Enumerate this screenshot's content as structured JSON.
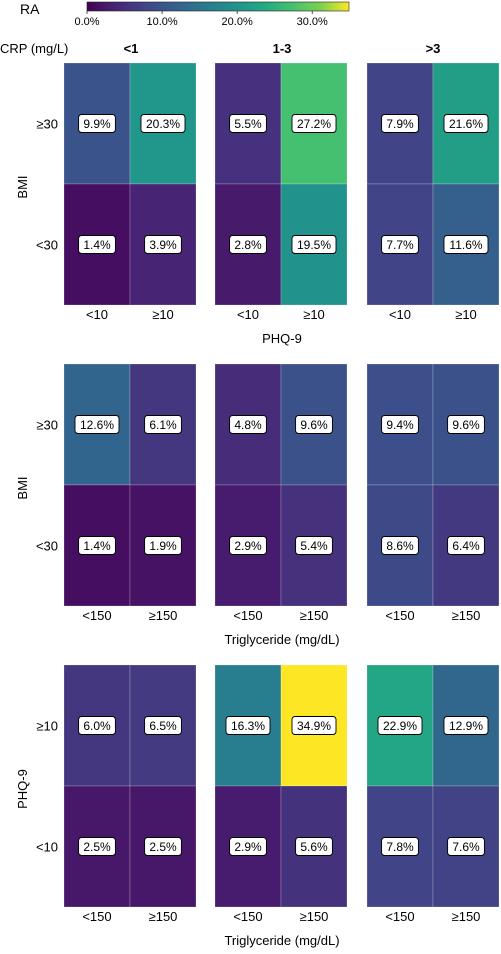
{
  "colorbar": {
    "label": "RA",
    "ticks": [
      {
        "value": 0,
        "label": "0.0%"
      },
      {
        "value": 10,
        "label": "10.0%"
      },
      {
        "value": 20,
        "label": "20.0%"
      },
      {
        "value": 30,
        "label": "30.0%"
      }
    ],
    "range": [
      0,
      34.9
    ],
    "colormap": "viridis"
  },
  "column_groups": {
    "label": "CRP (mg/L)",
    "names": [
      "<1",
      "1-3",
      ">3"
    ]
  },
  "chart_data": [
    {
      "type": "heatmap",
      "ylabel": "BMI",
      "xlabel": "PHQ-9",
      "row_labels": [
        "≥30",
        "<30"
      ],
      "col_labels": [
        "<10",
        "≥10"
      ],
      "panels": [
        {
          "group": "<1",
          "values": [
            [
              9.9,
              20.3
            ],
            [
              1.4,
              3.9
            ]
          ],
          "labels": [
            [
              "9.9%",
              "20.3%"
            ],
            [
              "1.4%",
              "3.9%"
            ]
          ]
        },
        {
          "group": "1-3",
          "values": [
            [
              5.5,
              27.2
            ],
            [
              2.8,
              19.5
            ]
          ],
          "labels": [
            [
              "5.5%",
              "27.2%"
            ],
            [
              "2.8%",
              "19.5%"
            ]
          ]
        },
        {
          "group": ">3",
          "values": [
            [
              7.9,
              21.6
            ],
            [
              7.7,
              11.6
            ]
          ],
          "labels": [
            [
              "7.9%",
              "21.6%"
            ],
            [
              "7.7%",
              "11.6%"
            ]
          ]
        }
      ]
    },
    {
      "type": "heatmap",
      "ylabel": "BMI",
      "xlabel": "Triglyceride (mg/dL)",
      "row_labels": [
        "≥30",
        "<30"
      ],
      "col_labels": [
        "<150",
        "≥150"
      ],
      "panels": [
        {
          "group": "<1",
          "values": [
            [
              12.6,
              6.1
            ],
            [
              1.4,
              1.9
            ]
          ],
          "labels": [
            [
              "12.6%",
              "6.1%"
            ],
            [
              "1.4%",
              "1.9%"
            ]
          ]
        },
        {
          "group": "1-3",
          "values": [
            [
              4.8,
              9.6
            ],
            [
              2.9,
              5.4
            ]
          ],
          "labels": [
            [
              "4.8%",
              "9.6%"
            ],
            [
              "2.9%",
              "5.4%"
            ]
          ]
        },
        {
          "group": ">3",
          "values": [
            [
              9.4,
              9.6
            ],
            [
              8.6,
              6.4
            ]
          ],
          "labels": [
            [
              "9.4%",
              "9.6%"
            ],
            [
              "8.6%",
              "6.4%"
            ]
          ]
        }
      ]
    },
    {
      "type": "heatmap",
      "ylabel": "PHQ-9",
      "xlabel": "Triglyceride (mg/dL)",
      "row_labels": [
        "≥10",
        "<10"
      ],
      "col_labels": [
        "<150",
        "≥150"
      ],
      "panels": [
        {
          "group": "<1",
          "values": [
            [
              6.0,
              6.5
            ],
            [
              2.5,
              2.5
            ]
          ],
          "labels": [
            [
              "6.0%",
              "6.5%"
            ],
            [
              "2.5%",
              "2.5%"
            ]
          ]
        },
        {
          "group": "1-3",
          "values": [
            [
              16.3,
              34.9
            ],
            [
              2.9,
              5.6
            ]
          ],
          "labels": [
            [
              "16.3%",
              "34.9%"
            ],
            [
              "2.9%",
              "5.6%"
            ]
          ]
        },
        {
          "group": ">3",
          "values": [
            [
              22.9,
              12.9
            ],
            [
              7.8,
              7.6
            ]
          ],
          "labels": [
            [
              "22.9%",
              "12.9%"
            ],
            [
              "7.8%",
              "7.6%"
            ]
          ]
        }
      ]
    }
  ]
}
